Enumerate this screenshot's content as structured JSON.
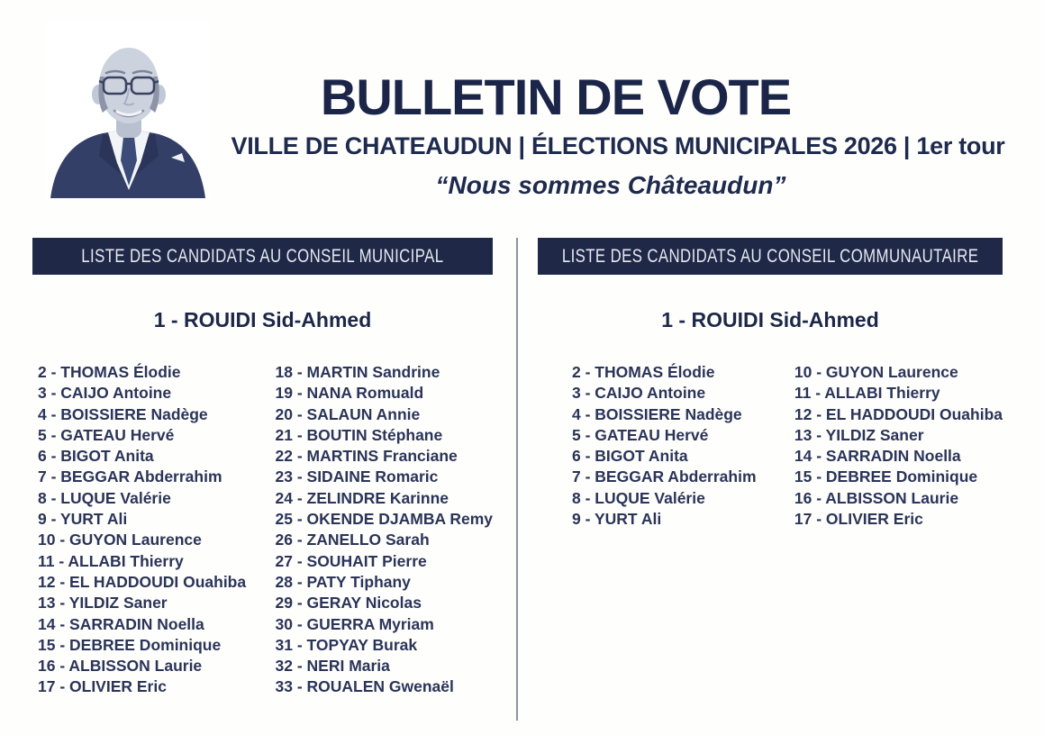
{
  "header": {
    "title": "BULLETIN DE VOTE",
    "subtitle": "VILLE DE CHATEAUDUN | ÉLECTIONS MUNICIPALES 2026 | 1er tour",
    "slogan": "“Nous sommes Châteaudun”"
  },
  "photo": {
    "icon": "head-of-list-portrait"
  },
  "colors": {
    "navy_title": "#1b2548",
    "bar_background": "#1f2847",
    "bar_text": "#e6e9f1",
    "candidate_text": "#2b3459",
    "divider_gray": "#8d92a2",
    "page_background": "#fefefc"
  },
  "lists": [
    {
      "header": "LISTE DES CANDIDATS AU CONSEIL MUNICIPAL",
      "head_candidate": "1 - ROUIDI Sid-Ahmed",
      "columns": [
        [
          "2 - THOMAS Élodie",
          "3 - CAIJO Antoine",
          "4 - BOISSIERE Nadège",
          "5 - GATEAU Hervé",
          "6 - BIGOT Anita",
          "7 - BEGGAR Abderrahim",
          "8 - LUQUE Valérie",
          "9 - YURT Ali",
          "10 - GUYON Laurence",
          "11 - ALLABI Thierry",
          "12 - EL HADDOUDI Ouahiba",
          "13 - YILDIZ Saner",
          "14 - SARRADIN Noella",
          "15 - DEBREE Dominique",
          "16 - ALBISSON Laurie",
          "17 - OLIVIER Eric"
        ],
        [
          "18 - MARTIN Sandrine",
          "19 - NANA Romuald",
          "20 - SALAUN Annie",
          "21 - BOUTIN Stéphane",
          "22 - MARTINS Franciane",
          "23 - SIDAINE Romaric",
          "24 - ZELINDRE Karinne",
          "25 - OKENDE DJAMBA Remy",
          "26 - ZANELLO Sarah",
          "27 - SOUHAIT Pierre",
          "28 - PATY Tiphany",
          "29 - GERAY Nicolas",
          "30 - GUERRA Myriam",
          "31 - TOPYAY Burak",
          "32 - NERI Maria",
          "33 - ROUALEN Gwenaël"
        ]
      ]
    },
    {
      "header": "LISTE DES CANDIDATS AU CONSEIL COMMUNAUTAIRE",
      "head_candidate": "1 - ROUIDI Sid-Ahmed",
      "columns": [
        [
          "2 - THOMAS Élodie",
          "3 - CAIJO Antoine",
          "4 - BOISSIERE Nadège",
          "5 - GATEAU Hervé",
          "6 - BIGOT Anita",
          "7 - BEGGAR Abderrahim",
          "8 - LUQUE Valérie",
          "9 - YURT Ali"
        ],
        [
          "10 - GUYON Laurence",
          "11 - ALLABI Thierry",
          "12 - EL HADDOUDI Ouahiba",
          "13 - YILDIZ Saner",
          "14 - SARRADIN Noella",
          "15 - DEBREE Dominique",
          "16 - ALBISSON Laurie",
          "17 - OLIVIER Eric"
        ]
      ]
    }
  ]
}
